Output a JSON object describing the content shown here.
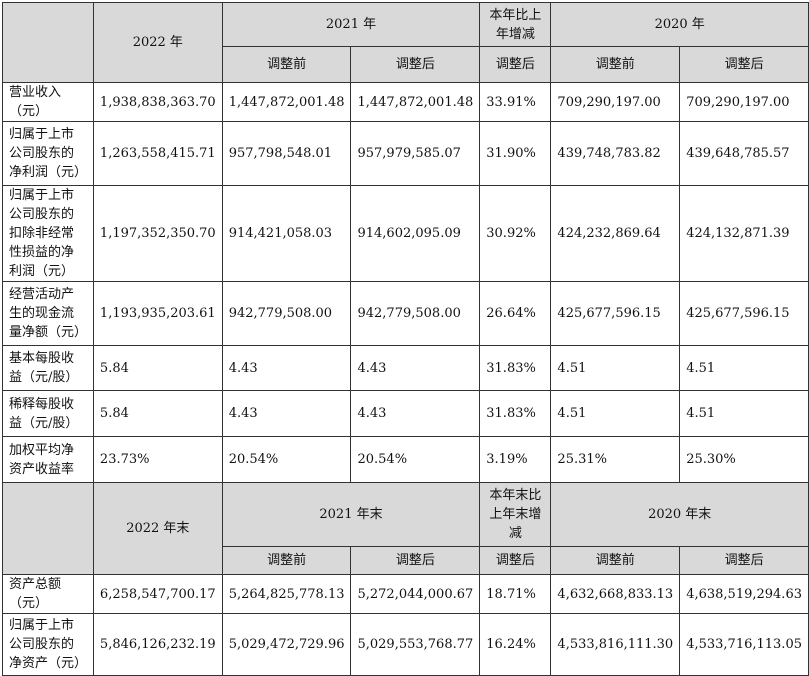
{
  "header1": {
    "y2022": "2022 年",
    "y2021": "2021 年",
    "change": "本年比上年增减",
    "y2020": "2020 年",
    "before": "调整前",
    "after": "调整后"
  },
  "rows1": [
    {
      "label": "营业收入（元）",
      "v": [
        "1,938,838,363.70",
        "1,447,872,001.48",
        "1,447,872,001.48",
        "33.91%",
        "709,290,197.00",
        "709,290,197.00"
      ]
    },
    {
      "label": "归属于上市公司股东的净利润（元）",
      "v": [
        "1,263,558,415.71",
        "957,798,548.01",
        "957,979,585.07",
        "31.90%",
        "439,748,783.82",
        "439,648,785.57"
      ]
    },
    {
      "label": "归属于上市公司股东的扣除非经常性损益的净利润（元）",
      "v": [
        "1,197,352,350.70",
        "914,421,058.03",
        "914,602,095.09",
        "30.92%",
        "424,232,869.64",
        "424,132,871.39"
      ]
    },
    {
      "label": "经营活动产生的现金流量净额（元）",
      "v": [
        "1,193,935,203.61",
        "942,779,508.00",
        "942,779,508.00",
        "26.64%",
        "425,677,596.15",
        "425,677,596.15"
      ]
    },
    {
      "label": "基本每股收益（元/股）",
      "v": [
        "5.84",
        "4.43",
        "4.43",
        "31.83%",
        "4.51",
        "4.51"
      ]
    },
    {
      "label": "稀释每股收益（元/股）",
      "v": [
        "5.84",
        "4.43",
        "4.43",
        "31.83%",
        "4.51",
        "4.51"
      ]
    },
    {
      "label": "加权平均净资产收益率",
      "v": [
        "23.73%",
        "20.54%",
        "20.54%",
        "3.19%",
        "25.31%",
        "25.30%"
      ]
    }
  ],
  "header2": {
    "y2022": "2022 年末",
    "y2021": "2021 年末",
    "change": "本年末比上年末增减",
    "y2020": "2020 年末",
    "before": "调整前",
    "after": "调整后"
  },
  "rows2": [
    {
      "label": "资产总额（元）",
      "v": [
        "6,258,547,700.17",
        "5,264,825,778.13",
        "5,272,044,000.67",
        "18.71%",
        "4,632,668,833.13",
        "4,638,519,294.63"
      ]
    },
    {
      "label": "归属于上市公司股东的净资产（元）",
      "v": [
        "5,846,126,232.19",
        "5,029,472,729.96",
        "5,029,553,768.77",
        "16.24%",
        "4,533,816,111.30",
        "4,533,716,113.05"
      ]
    }
  ]
}
